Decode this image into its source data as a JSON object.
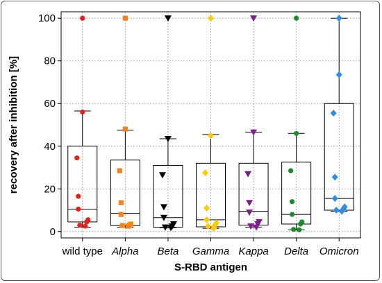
{
  "chart_data": {
    "type": "box",
    "title": "",
    "xlabel": "S-RBD antigen",
    "ylabel": "recovery after inhibition [%]",
    "ylim": [
      -3,
      103
    ],
    "yticks": [
      0,
      20,
      40,
      60,
      80,
      100
    ],
    "grid": true,
    "legend": "none",
    "categories": [
      {
        "label": "wild type",
        "italic": false
      },
      {
        "label": "Alpha",
        "italic": true
      },
      {
        "label": "Beta",
        "italic": true
      },
      {
        "label": "Gamma",
        "italic": true
      },
      {
        "label": "Kappa",
        "italic": true
      },
      {
        "label": "Delta",
        "italic": true
      },
      {
        "label": "Omicron",
        "italic": true
      }
    ],
    "series": [
      {
        "color": "#e3201b",
        "marker": "circle",
        "box": {
          "whisker_low": 2,
          "q1": 4.5,
          "median": 10.5,
          "q3": 40,
          "whisker_high": 56.5
        },
        "points": [
          100,
          56,
          34.5,
          16.5,
          10.5,
          5.5,
          4.5,
          3,
          2.5
        ]
      },
      {
        "color": "#f58220",
        "marker": "square",
        "box": {
          "whisker_low": 2,
          "q1": 2.8,
          "median": 8.5,
          "q3": 33.5,
          "whisker_high": 47.5
        },
        "points": [
          100,
          48,
          28.5,
          13.5,
          8,
          3.5,
          3,
          2.8,
          2.5
        ]
      },
      {
        "color": "#000000",
        "marker": "triangle-down",
        "box": {
          "whisker_low": 1.8,
          "q1": 2,
          "median": 6.5,
          "q3": 31,
          "whisker_high": 43.5
        },
        "points": [
          100,
          43.5,
          26.5,
          11.5,
          6.5,
          3.5,
          2.5,
          2,
          1.8
        ]
      },
      {
        "color": "#ffcc00",
        "marker": "diamond",
        "box": {
          "whisker_low": 1.5,
          "q1": 2.2,
          "median": 5.5,
          "q3": 32,
          "whisker_high": 45.5
        },
        "points": [
          100,
          45,
          27.5,
          11,
          5.5,
          4,
          3,
          2.5,
          1.5
        ]
      },
      {
        "color": "#7b1f8b",
        "marker": "triangle-down",
        "box": {
          "whisker_low": 2,
          "q1": 3,
          "median": 9.5,
          "q3": 32,
          "whisker_high": 46.5
        },
        "points": [
          100,
          46.5,
          27,
          13.5,
          9,
          4.5,
          3.5,
          2.5,
          2
        ]
      },
      {
        "color": "#1a8c2e",
        "marker": "circle",
        "box": {
          "whisker_low": 0.8,
          "q1": 3.5,
          "median": 8,
          "q3": 32.5,
          "whisker_high": 46
        },
        "points": [
          100,
          46,
          28.5,
          14,
          8,
          4.5,
          3.5,
          1,
          0.8
        ]
      },
      {
        "color": "#2e8ee8",
        "marker": "diamond",
        "box": {
          "whisker_low": 9.5,
          "q1": 10,
          "median": 15.5,
          "q3": 60,
          "whisker_high": 100
        },
        "points": [
          100,
          73.5,
          55.5,
          25.5,
          15.5,
          11.5,
          10.5,
          10,
          9.5
        ]
      }
    ]
  }
}
